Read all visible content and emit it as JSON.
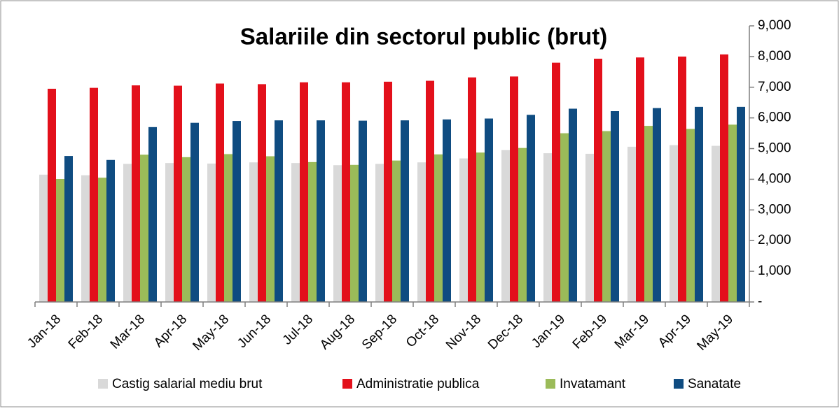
{
  "chart_data": {
    "type": "bar",
    "title": "Salariile din sectorul public (brut)",
    "categories": [
      "Jan-18",
      "Feb-18",
      "Mar-18",
      "Apr-18",
      "May-18",
      "Jun-18",
      "Jul-18",
      "Aug-18",
      "Sep-18",
      "Oct-18",
      "Nov-18",
      "Dec-18",
      "Jan-19",
      "Feb-19",
      "Mar-19",
      "Apr-19",
      "May-19"
    ],
    "series": [
      {
        "name": "Castig salarial mediu brut",
        "color": "#d9d9d9",
        "values": [
          4150,
          4130,
          4500,
          4530,
          4510,
          4550,
          4530,
          4460,
          4500,
          4550,
          4680,
          4950,
          4850,
          4830,
          5060,
          5110,
          5090
        ]
      },
      {
        "name": "Administratie publica",
        "color": "#e3101b",
        "values": [
          6950,
          6980,
          7060,
          7050,
          7120,
          7100,
          7160,
          7160,
          7180,
          7210,
          7320,
          7350,
          7800,
          7930,
          7970,
          8000,
          8070
        ]
      },
      {
        "name": "Invatamant",
        "color": "#9bbb59",
        "values": [
          4010,
          4050,
          4800,
          4720,
          4820,
          4750,
          4560,
          4470,
          4610,
          4810,
          4870,
          5020,
          5500,
          5570,
          5740,
          5640,
          5780
        ]
      },
      {
        "name": "Sanatate",
        "color": "#0f4c81",
        "values": [
          4760,
          4630,
          5700,
          5840,
          5900,
          5920,
          5920,
          5910,
          5920,
          5950,
          5980,
          6100,
          6300,
          6220,
          6320,
          6360,
          6360
        ]
      }
    ],
    "ylim": [
      0,
      9000
    ],
    "yticks": [
      {
        "value": 0,
        "label": "-"
      },
      {
        "value": 1000,
        "label": "1,000"
      },
      {
        "value": 2000,
        "label": "2,000"
      },
      {
        "value": 3000,
        "label": "3,000"
      },
      {
        "value": 4000,
        "label": "4,000"
      },
      {
        "value": 5000,
        "label": "5,000"
      },
      {
        "value": 6000,
        "label": "6,000"
      },
      {
        "value": 7000,
        "label": "7,000"
      },
      {
        "value": 8000,
        "label": "8,000"
      },
      {
        "value": 9000,
        "label": "9,000"
      }
    ],
    "y_axis_side": "right",
    "grid": false,
    "legend": "bottom"
  }
}
